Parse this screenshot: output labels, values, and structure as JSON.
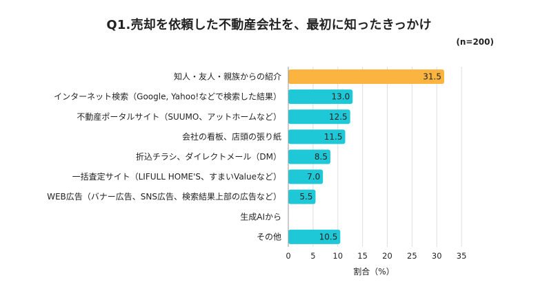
{
  "title": "Q1.売却を依頼した不動産会社を、最初に知ったきっかけ",
  "sample_note": "(n=200)",
  "colors": {
    "highlight": "#FBB440",
    "bar": "#1EC8D6",
    "grid": "#DDDDDD"
  },
  "chart_data": {
    "type": "bar",
    "orientation": "horizontal",
    "categories": [
      "知人・友人・親族からの紹介",
      "インターネット検索（Google, Yahoo!などで検索した結果）",
      "不動産ポータルサイト（SUUMO、アットホームなど）",
      "会社の看板、店頭の張り紙",
      "折込チラシ、ダイレクトメール（DM）",
      "一括査定サイト（LIFULL HOME'S、すまいValueなど）",
      "WEB広告（バナー広告、SNS広告、検索結果上部の広告など）",
      "生成AIから",
      "その他"
    ],
    "values": [
      31.5,
      13.0,
      12.5,
      11.5,
      8.5,
      7.0,
      5.5,
      0,
      10.5
    ],
    "value_labels": [
      "31.5",
      "13.0",
      "12.5",
      "11.5",
      "8.5",
      "7.0",
      "5.5",
      "",
      "10.5"
    ],
    "highlight_index": 0,
    "xlabel": "割合（%）",
    "xlim": [
      0,
      35
    ],
    "xticks": [
      0,
      5,
      10,
      15,
      20,
      25,
      30,
      35
    ],
    "grid": true
  }
}
